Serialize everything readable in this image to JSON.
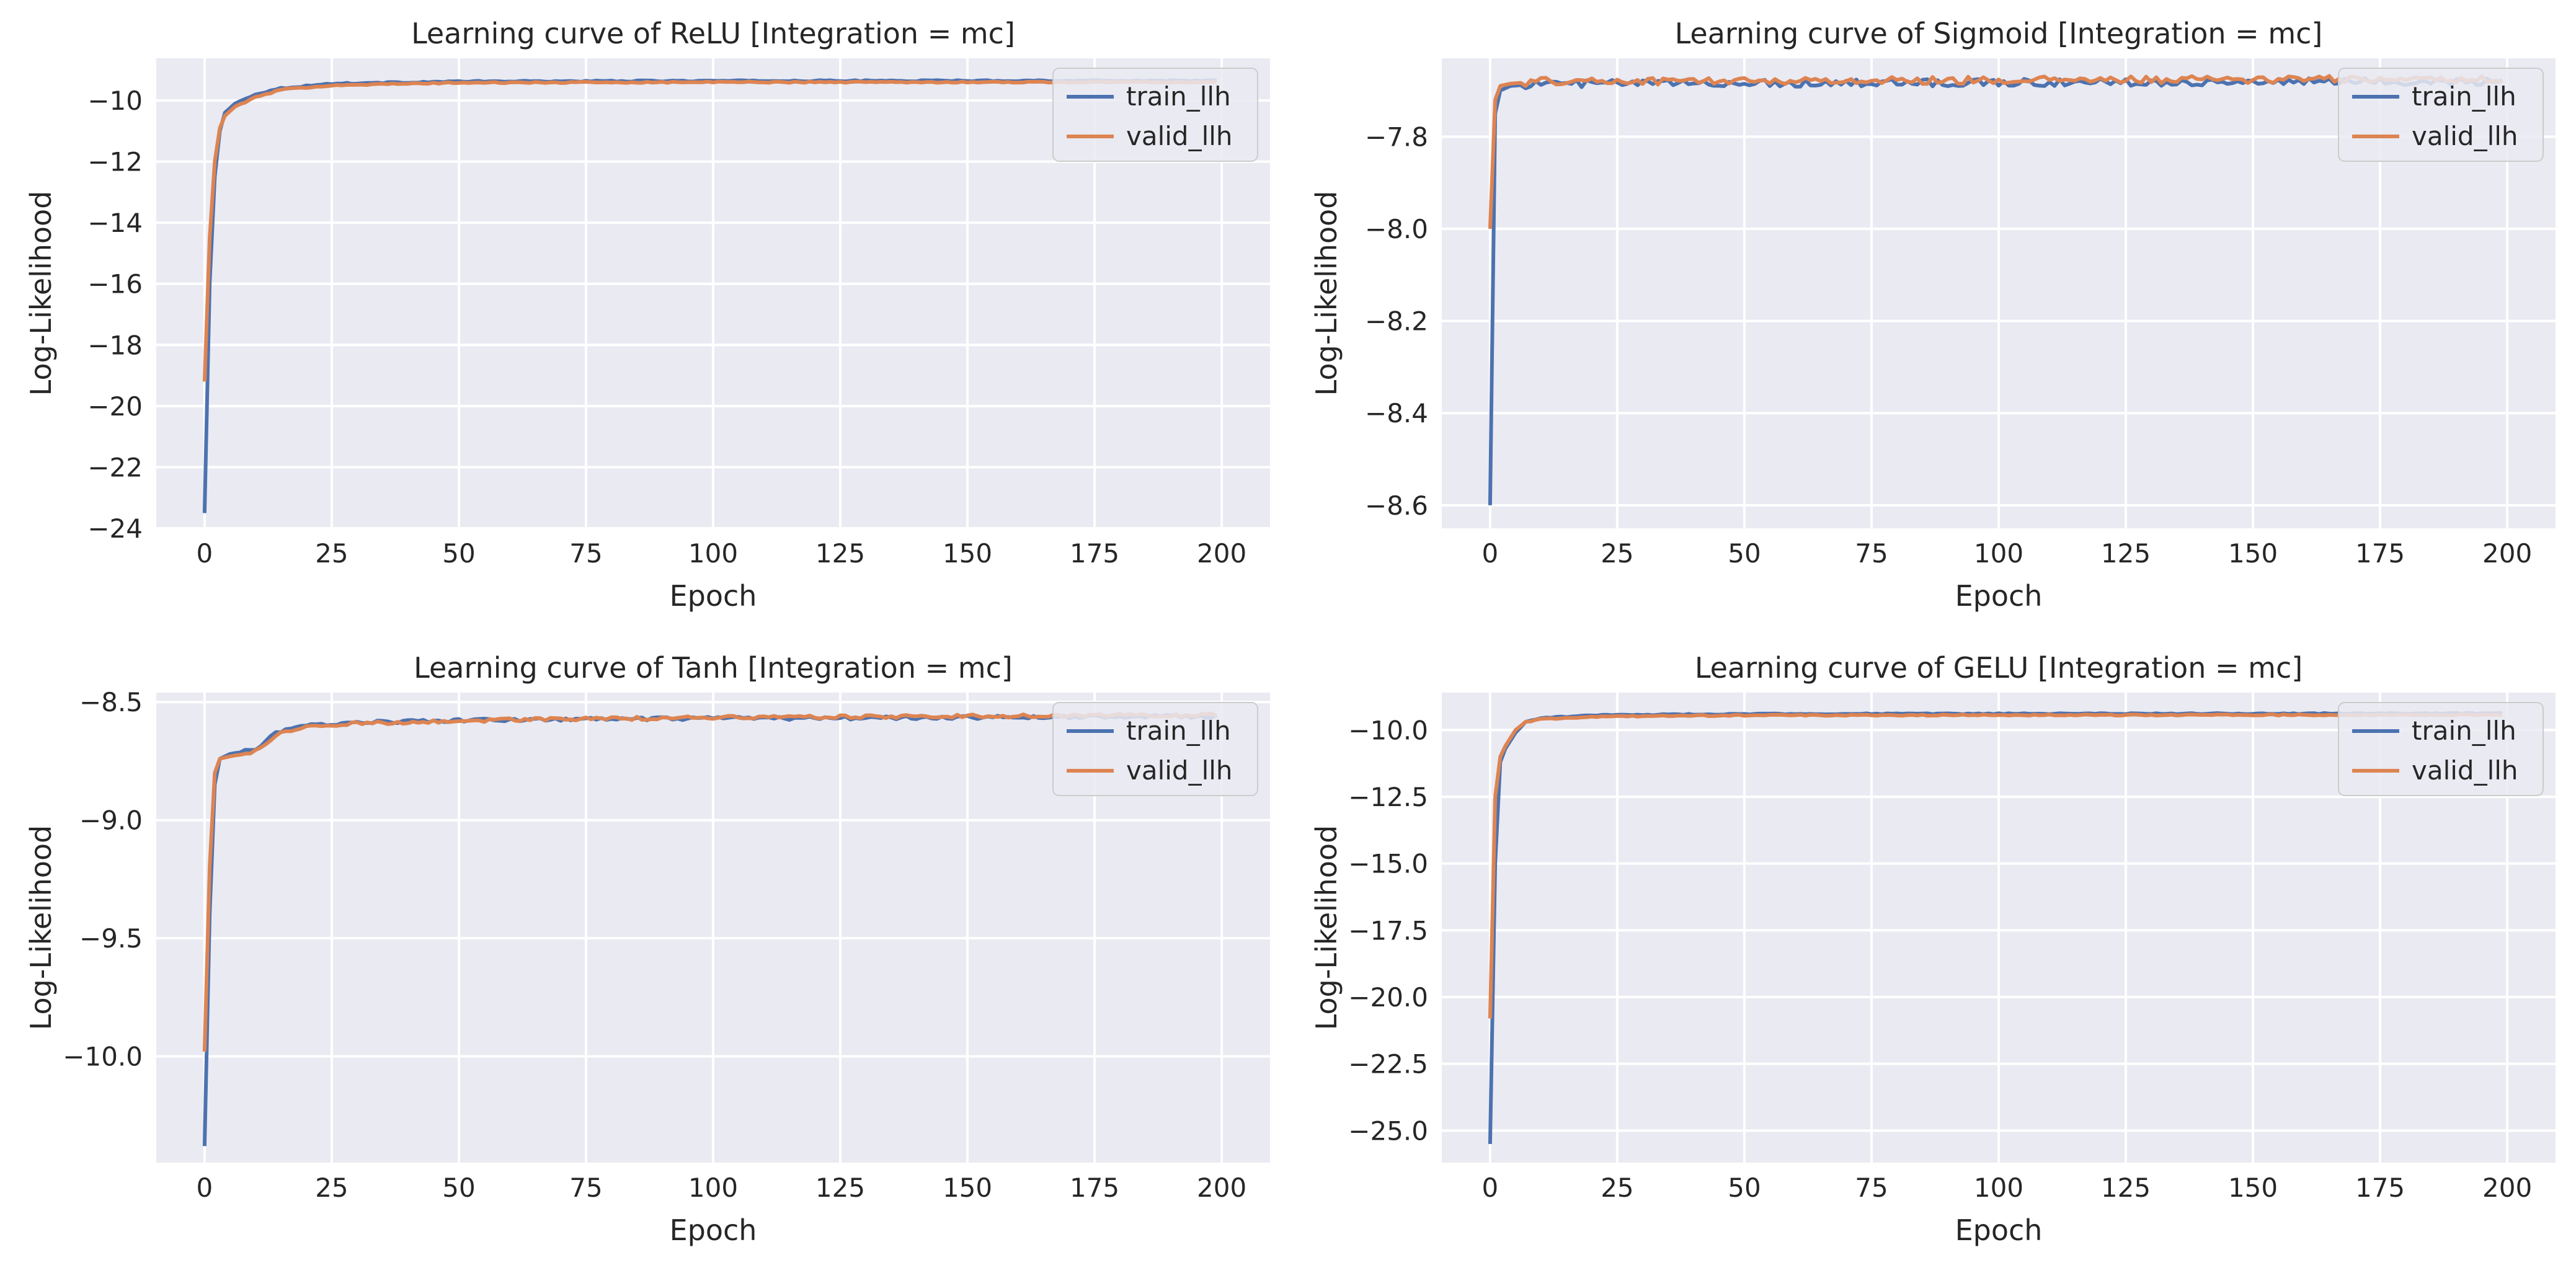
{
  "figure": {
    "background": "#ffffff",
    "plot_background": "#eaeaf2",
    "grid_color": "#ffffff"
  },
  "colors": {
    "train_llh": "#4c72b0",
    "valid_llh": "#dd8452"
  },
  "chart_data": [
    {
      "type": "line",
      "title": "Learning curve of ReLU [Integration = mc]",
      "xlabel": "Epoch",
      "ylabel": "Log-Likelihood",
      "xlim": [
        -9.5,
        209.5
      ],
      "ylim": [
        -24.0,
        -8.62
      ],
      "xticks": [
        0,
        25,
        50,
        75,
        100,
        125,
        150,
        175,
        200
      ],
      "xtick_labels": [
        "0",
        "25",
        "50",
        "75",
        "100",
        "125",
        "150",
        "175",
        "200"
      ],
      "yticks": [
        -24,
        -22,
        -20,
        -18,
        -16,
        -14,
        -12,
        -10
      ],
      "ytick_labels": [
        "−24",
        "−22",
        "−20",
        "−18",
        "−16",
        "−14",
        "−12",
        "−10"
      ],
      "grid": true,
      "legend": "top-right",
      "legend_labels": [
        "train_llh",
        "valid_llh"
      ],
      "x_range": [
        0,
        199
      ],
      "series": [
        {
          "name": "train_llh",
          "color_key": "train_llh",
          "anchors": [
            [
              0,
              -23.5
            ],
            [
              1,
              -16.0
            ],
            [
              2,
              -12.5
            ],
            [
              3,
              -11.0
            ],
            [
              4,
              -10.4
            ],
            [
              6,
              -10.1
            ],
            [
              10,
              -9.8
            ],
            [
              15,
              -9.6
            ],
            [
              25,
              -9.45
            ],
            [
              50,
              -9.38
            ],
            [
              100,
              -9.36
            ],
            [
              199,
              -9.35
            ]
          ],
          "noise": 0.02
        },
        {
          "name": "valid_llh",
          "color_key": "valid_llh",
          "anchors": [
            [
              0,
              -19.2
            ],
            [
              1,
              -14.5
            ],
            [
              2,
              -12.0
            ],
            [
              3,
              -10.9
            ],
            [
              4,
              -10.5
            ],
            [
              6,
              -10.2
            ],
            [
              10,
              -9.9
            ],
            [
              15,
              -9.65
            ],
            [
              25,
              -9.5
            ],
            [
              50,
              -9.42
            ],
            [
              100,
              -9.4
            ],
            [
              199,
              -9.4
            ]
          ],
          "noise": 0.02
        }
      ]
    },
    {
      "type": "line",
      "title": "Learning curve of Sigmoid [Integration = mc]",
      "xlabel": "Epoch",
      "ylabel": "Log-Likelihood",
      "xlim": [
        -9.5,
        209.5
      ],
      "ylim": [
        -8.65,
        -7.63
      ],
      "xticks": [
        0,
        25,
        50,
        75,
        100,
        125,
        150,
        175,
        200
      ],
      "xtick_labels": [
        "0",
        "25",
        "50",
        "75",
        "100",
        "125",
        "150",
        "175",
        "200"
      ],
      "yticks": [
        -8.6,
        -8.4,
        -8.2,
        -8.0,
        -7.8
      ],
      "ytick_labels": [
        "−8.6",
        "−8.4",
        "−8.2",
        "−8.0",
        "−7.8"
      ],
      "grid": true,
      "legend": "top-right",
      "legend_labels": [
        "train_llh",
        "valid_llh"
      ],
      "x_range": [
        0,
        199
      ],
      "series": [
        {
          "name": "train_llh",
          "color_key": "train_llh",
          "anchors": [
            [
              0,
              -8.6
            ],
            [
              1,
              -7.75
            ],
            [
              2,
              -7.7
            ],
            [
              4,
              -7.69
            ],
            [
              10,
              -7.685
            ],
            [
              199,
              -7.68
            ]
          ],
          "noise": 0.008
        },
        {
          "name": "valid_llh",
          "color_key": "valid_llh",
          "anchors": [
            [
              0,
              -8.0
            ],
            [
              1,
              -7.72
            ],
            [
              2,
              -7.69
            ],
            [
              4,
              -7.685
            ],
            [
              10,
              -7.68
            ],
            [
              199,
              -7.675
            ]
          ],
          "noise": 0.008
        }
      ]
    },
    {
      "type": "line",
      "title": "Learning curve of Tanh [Integration = mc]",
      "xlabel": "Epoch",
      "ylabel": "Log-Likelihood",
      "xlim": [
        -9.5,
        209.5
      ],
      "ylim": [
        -10.45,
        -8.46
      ],
      "xticks": [
        0,
        25,
        50,
        75,
        100,
        125,
        150,
        175,
        200
      ],
      "xtick_labels": [
        "0",
        "25",
        "50",
        "75",
        "100",
        "125",
        "150",
        "175",
        "200"
      ],
      "yticks": [
        -10.0,
        -9.5,
        -9.0,
        -8.5
      ],
      "ytick_labels": [
        "−10.0",
        "−9.5",
        "−9.0",
        "−8.5"
      ],
      "grid": true,
      "legend": "top-right",
      "legend_labels": [
        "train_llh",
        "valid_llh"
      ],
      "x_range": [
        0,
        199
      ],
      "series": [
        {
          "name": "train_llh",
          "color_key": "train_llh",
          "anchors": [
            [
              0,
              -10.38
            ],
            [
              1,
              -9.4
            ],
            [
              2,
              -8.85
            ],
            [
              3,
              -8.74
            ],
            [
              5,
              -8.72
            ],
            [
              10,
              -8.7
            ],
            [
              14,
              -8.63
            ],
            [
              20,
              -8.6
            ],
            [
              30,
              -8.585
            ],
            [
              60,
              -8.575
            ],
            [
              100,
              -8.57
            ],
            [
              150,
              -8.565
            ],
            [
              199,
              -8.56
            ]
          ],
          "noise": 0.007
        },
        {
          "name": "valid_llh",
          "color_key": "valid_llh",
          "anchors": [
            [
              0,
              -9.98
            ],
            [
              1,
              -9.2
            ],
            [
              2,
              -8.8
            ],
            [
              3,
              -8.74
            ],
            [
              5,
              -8.73
            ],
            [
              10,
              -8.71
            ],
            [
              14,
              -8.64
            ],
            [
              20,
              -8.605
            ],
            [
              30,
              -8.59
            ],
            [
              60,
              -8.575
            ],
            [
              100,
              -8.565
            ],
            [
              150,
              -8.56
            ],
            [
              199,
              -8.555
            ]
          ],
          "noise": 0.007
        }
      ]
    },
    {
      "type": "line",
      "title": "Learning curve of GELU [Integration = mc]",
      "xlabel": "Epoch",
      "ylabel": "Log-Likelihood",
      "xlim": [
        -9.5,
        209.5
      ],
      "ylim": [
        -26.2,
        -8.6
      ],
      "xticks": [
        0,
        25,
        50,
        75,
        100,
        125,
        150,
        175,
        200
      ],
      "xtick_labels": [
        "0",
        "25",
        "50",
        "75",
        "100",
        "125",
        "150",
        "175",
        "200"
      ],
      "yticks": [
        -25.0,
        -22.5,
        -20.0,
        -17.5,
        -15.0,
        -12.5,
        -10.0
      ],
      "ytick_labels": [
        "−25.0",
        "−22.5",
        "−20.0",
        "−17.5",
        "−15.0",
        "−12.5",
        "−10.0"
      ],
      "grid": true,
      "legend": "top-right",
      "legend_labels": [
        "train_llh",
        "valid_llh"
      ],
      "x_range": [
        0,
        199
      ],
      "series": [
        {
          "name": "train_llh",
          "color_key": "train_llh",
          "anchors": [
            [
              0,
              -25.5
            ],
            [
              1,
              -15.0
            ],
            [
              2,
              -11.2
            ],
            [
              3,
              -10.7
            ],
            [
              5,
              -10.1
            ],
            [
              7,
              -9.7
            ],
            [
              10,
              -9.55
            ],
            [
              20,
              -9.45
            ],
            [
              50,
              -9.4
            ],
            [
              199,
              -9.38
            ]
          ],
          "noise": 0.02
        },
        {
          "name": "valid_llh",
          "color_key": "valid_llh",
          "anchors": [
            [
              0,
              -20.8
            ],
            [
              1,
              -12.5
            ],
            [
              2,
              -11.0
            ],
            [
              3,
              -10.6
            ],
            [
              5,
              -10.0
            ],
            [
              7,
              -9.7
            ],
            [
              10,
              -9.6
            ],
            [
              20,
              -9.5
            ],
            [
              50,
              -9.45
            ],
            [
              199,
              -9.43
            ]
          ],
          "noise": 0.02
        }
      ]
    }
  ]
}
